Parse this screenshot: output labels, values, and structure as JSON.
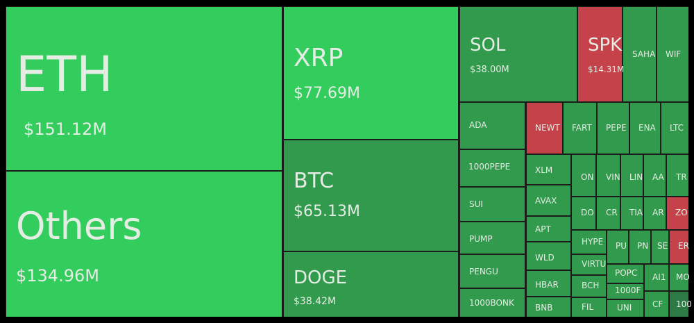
{
  "colors": {
    "strong_up": "#32cd5c",
    "up": "#319a4c",
    "down": "#c6424b",
    "dark_up": "#2e7a45",
    "background": "#000000"
  },
  "tiles": [
    {
      "symbol": "ETH",
      "value": "$151.12M",
      "tone": "up-strong"
    },
    {
      "symbol": "Others",
      "value": "$134.96M",
      "tone": "up-strong"
    },
    {
      "symbol": "XRP",
      "value": "$77.69M",
      "tone": "up-strong"
    },
    {
      "symbol": "BTC",
      "value": "$65.13M",
      "tone": "up"
    },
    {
      "symbol": "DOGE",
      "value": "$38.42M",
      "tone": "up"
    },
    {
      "symbol": "SOL",
      "value": "$38.00M",
      "tone": "up"
    },
    {
      "symbol": "SPK",
      "value": "$14.31M",
      "tone": "down"
    },
    {
      "symbol": "SAHA",
      "tone": "up"
    },
    {
      "symbol": "WIF",
      "tone": "up"
    },
    {
      "symbol": "ADA",
      "tone": "up"
    },
    {
      "symbol": "NEWT",
      "tone": "down"
    },
    {
      "symbol": "FART",
      "tone": "up"
    },
    {
      "symbol": "PEPE",
      "tone": "up"
    },
    {
      "symbol": "ENA",
      "tone": "up"
    },
    {
      "symbol": "LTC",
      "tone": "up"
    },
    {
      "symbol": "1000PEPE",
      "tone": "up"
    },
    {
      "symbol": "SUI",
      "tone": "up"
    },
    {
      "symbol": "PUMP",
      "tone": "up"
    },
    {
      "symbol": "PENGU",
      "tone": "up"
    },
    {
      "symbol": "1000BONK",
      "tone": "up"
    },
    {
      "symbol": "XLM",
      "tone": "up"
    },
    {
      "symbol": "AVAX",
      "tone": "up"
    },
    {
      "symbol": "APT",
      "tone": "up"
    },
    {
      "symbol": "WLD",
      "tone": "up"
    },
    {
      "symbol": "HBAR",
      "tone": "up"
    },
    {
      "symbol": "BNB",
      "tone": "up"
    },
    {
      "symbol": "ON",
      "tone": "up"
    },
    {
      "symbol": "VIN",
      "tone": "up"
    },
    {
      "symbol": "LIN",
      "tone": "up"
    },
    {
      "symbol": "AA",
      "tone": "up"
    },
    {
      "symbol": "TR",
      "tone": "up"
    },
    {
      "symbol": "DO",
      "tone": "up"
    },
    {
      "symbol": "CR",
      "tone": "up"
    },
    {
      "symbol": "TIA",
      "tone": "up"
    },
    {
      "symbol": "AR",
      "tone": "up"
    },
    {
      "symbol": "ZO",
      "tone": "down"
    },
    {
      "symbol": "HYPE",
      "tone": "up"
    },
    {
      "symbol": "PU",
      "tone": "up"
    },
    {
      "symbol": "PN",
      "tone": "up"
    },
    {
      "symbol": "SE",
      "tone": "up"
    },
    {
      "symbol": "ER",
      "tone": "down"
    },
    {
      "symbol": "VIRTU",
      "tone": "up"
    },
    {
      "symbol": "BCH",
      "tone": "up"
    },
    {
      "symbol": "FIL",
      "tone": "up"
    },
    {
      "symbol": "POPC",
      "tone": "up"
    },
    {
      "symbol": "1000F",
      "tone": "up"
    },
    {
      "symbol": "UNI",
      "tone": "up"
    },
    {
      "symbol": "AI1",
      "tone": "up"
    },
    {
      "symbol": "MO",
      "tone": "up"
    },
    {
      "symbol": "CF",
      "tone": "up"
    },
    {
      "symbol": "100",
      "tone": "dark"
    }
  ]
}
